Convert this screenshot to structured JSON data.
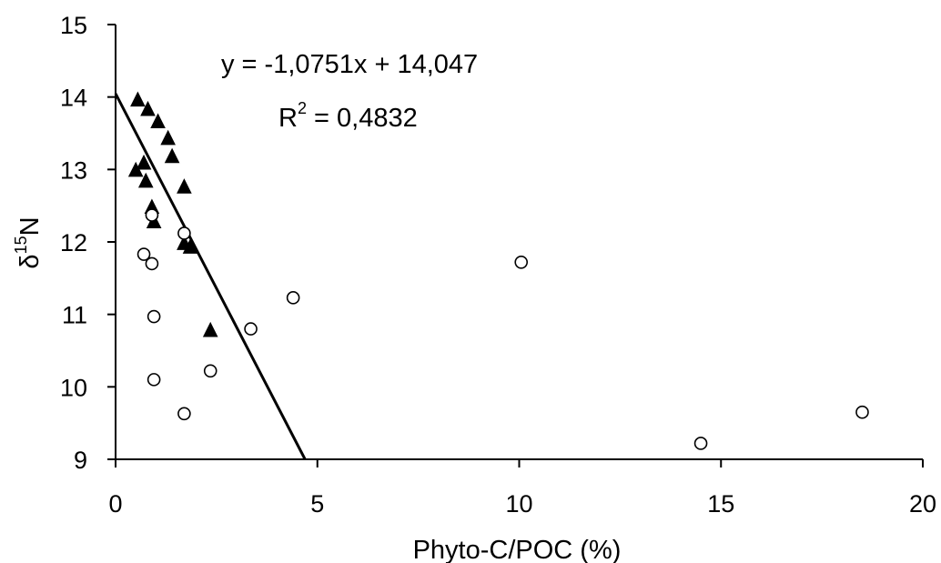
{
  "chart_data": {
    "type": "scatter",
    "title": "",
    "xlabel": "Phyto-C/POC (%)",
    "ylabel": {
      "main": "δ",
      "sup": "15",
      "after": "N"
    },
    "xlim": [
      0,
      20
    ],
    "ylim": [
      9,
      15
    ],
    "x_ticks": [
      "0",
      "5",
      "10",
      "15",
      "20"
    ],
    "y_ticks": [
      "9",
      "10",
      "11",
      "12",
      "13",
      "14",
      "15"
    ],
    "grid": false,
    "legend": "none",
    "series": [
      {
        "marker": "filled-triangle",
        "color": "#000000",
        "points": [
          [
            0.55,
            13.95
          ],
          [
            0.8,
            13.82
          ],
          [
            1.05,
            13.65
          ],
          [
            1.3,
            13.42
          ],
          [
            1.4,
            13.17
          ],
          [
            0.7,
            13.08
          ],
          [
            0.5,
            12.98
          ],
          [
            0.75,
            12.83
          ],
          [
            1.7,
            12.75
          ],
          [
            0.9,
            12.47
          ],
          [
            0.95,
            12.27
          ],
          [
            1.7,
            11.97
          ],
          [
            1.85,
            11.92
          ],
          [
            2.35,
            10.77
          ]
        ]
      },
      {
        "marker": "open-circle",
        "color": "#000000",
        "points": [
          [
            0.9,
            12.37
          ],
          [
            1.7,
            12.12
          ],
          [
            0.7,
            11.83
          ],
          [
            0.9,
            11.7
          ],
          [
            0.95,
            10.97
          ],
          [
            0.95,
            10.1
          ],
          [
            1.7,
            9.63
          ],
          [
            2.35,
            10.22
          ],
          [
            3.35,
            10.8
          ],
          [
            4.4,
            11.23
          ],
          [
            10.05,
            11.72
          ],
          [
            14.5,
            9.22
          ],
          [
            18.5,
            9.65
          ]
        ]
      }
    ],
    "trendline": {
      "slope": -1.0751,
      "intercept": 14.047,
      "equation_text": "y = -1,0751x + 14,047",
      "r2_label": "R",
      "r2_sup": "2",
      "r2_value_text": " = 0,4832"
    }
  },
  "colors": {
    "ink": "#000000",
    "background": "#ffffff"
  }
}
